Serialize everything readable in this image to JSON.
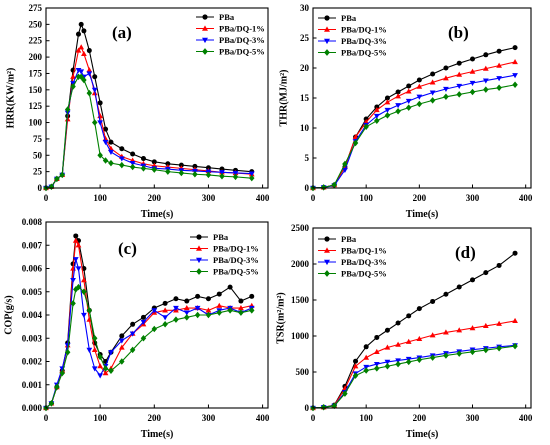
{
  "chart_data": [
    {
      "panel_label": "(a)",
      "type": "line",
      "xlabel": "Time(s)",
      "ylabel": "HRR(KW/m²)",
      "xlim": [
        0,
        410
      ],
      "ylim": [
        0,
        275
      ],
      "xticks": [
        0,
        100,
        200,
        300,
        400
      ],
      "xtick_labels": [
        "0",
        "100",
        "200",
        "300",
        "400"
      ],
      "yticks": [
        0,
        25,
        50,
        75,
        100,
        125,
        150,
        175,
        200,
        225,
        250,
        275
      ],
      "ytick_labels": [
        "0",
        "25",
        "50",
        "75",
        "100",
        "125",
        "150",
        "175",
        "200",
        "225",
        "250",
        "275"
      ],
      "legend": "top-right",
      "x": [
        0,
        10,
        20,
        30,
        40,
        50,
        60,
        65,
        70,
        80,
        90,
        100,
        110,
        120,
        140,
        160,
        180,
        200,
        225,
        250,
        275,
        300,
        325,
        350,
        380
      ],
      "series": [
        {
          "name": "PBa",
          "color": "#000000",
          "marker": "circle",
          "values": [
            0,
            2,
            14,
            20,
            110,
            180,
            235,
            250,
            240,
            210,
            170,
            130,
            90,
            70,
            60,
            52,
            45,
            40,
            37,
            35,
            33,
            31,
            29,
            27,
            25
          ]
        },
        {
          "name": "PBa/DQ-1%",
          "color": "#ff0000",
          "marker": "triangle-up",
          "values": [
            0,
            2,
            14,
            20,
            105,
            170,
            210,
            215,
            205,
            180,
            145,
            110,
            75,
            60,
            48,
            42,
            37,
            34,
            32,
            30,
            28,
            26,
            24,
            23,
            21
          ]
        },
        {
          "name": "PBa/DQ-3%",
          "color": "#0000ff",
          "marker": "triangle-down",
          "values": [
            0,
            2,
            14,
            20,
            115,
            160,
            180,
            178,
            170,
            175,
            150,
            100,
            70,
            55,
            45,
            38,
            34,
            30,
            29,
            27,
            26,
            25,
            24,
            23,
            22
          ]
        },
        {
          "name": "PBa/DQ-5%",
          "color": "#008000",
          "marker": "diamond",
          "values": [
            0,
            2,
            14,
            20,
            120,
            155,
            170,
            170,
            165,
            145,
            100,
            50,
            42,
            38,
            35,
            32,
            30,
            28,
            25,
            23,
            21,
            20,
            18,
            17,
            15
          ]
        }
      ]
    },
    {
      "panel_label": "(b)",
      "type": "line",
      "xlabel": "Time(s)",
      "ylabel": "THR(MJ/m²)",
      "xlim": [
        0,
        410
      ],
      "ylim": [
        0,
        30
      ],
      "xticks": [
        0,
        100,
        200,
        300,
        400
      ],
      "xtick_labels": [
        "0",
        "100",
        "200",
        "300",
        "400"
      ],
      "yticks": [
        0,
        5,
        10,
        15,
        20,
        25,
        30
      ],
      "ytick_labels": [
        "0",
        "5",
        "10",
        "15",
        "20",
        "25",
        "30"
      ],
      "legend": "top-left",
      "x": [
        0,
        20,
        40,
        60,
        80,
        100,
        120,
        140,
        160,
        180,
        200,
        225,
        250,
        275,
        300,
        325,
        350,
        380
      ],
      "series": [
        {
          "name": "PBa",
          "color": "#000000",
          "marker": "circle",
          "values": [
            0,
            0.1,
            0.5,
            3.5,
            8.5,
            11.5,
            13.5,
            15,
            16,
            17,
            18,
            19,
            20,
            20.8,
            21.5,
            22.2,
            22.8,
            23.4
          ]
        },
        {
          "name": "PBa/DQ-1%",
          "color": "#ff0000",
          "marker": "triangle-up",
          "values": [
            0,
            0.1,
            0.5,
            3.5,
            8.5,
            11,
            13,
            14.3,
            15.3,
            16.1,
            16.9,
            17.6,
            18.3,
            18.9,
            19.4,
            19.9,
            20.4,
            21
          ]
        },
        {
          "name": "PBa/DQ-3%",
          "color": "#0000ff",
          "marker": "triangle-down",
          "values": [
            0,
            0.1,
            0.4,
            3,
            7.8,
            10.5,
            12,
            13,
            13.8,
            14.5,
            15.2,
            15.9,
            16.5,
            17,
            17.5,
            17.9,
            18.3,
            18.8
          ]
        },
        {
          "name": "PBa/DQ-5%",
          "color": "#008000",
          "marker": "diamond",
          "values": [
            0,
            0.1,
            0.5,
            4,
            7.5,
            10.2,
            11.2,
            12.1,
            12.8,
            13.4,
            14,
            14.6,
            15.2,
            15.6,
            16,
            16.4,
            16.7,
            17.2
          ]
        }
      ]
    },
    {
      "panel_label": "(c)",
      "type": "line",
      "xlabel": "Time(s)",
      "ylabel": "COP(g/s)",
      "xlim": [
        0,
        410
      ],
      "ylim": [
        0,
        0.008
      ],
      "xticks": [
        0,
        100,
        200,
        300,
        400
      ],
      "xtick_labels": [
        "0",
        "100",
        "200",
        "300",
        "400"
      ],
      "yticks": [
        0,
        0.001,
        0.002,
        0.003,
        0.004,
        0.005,
        0.006,
        0.007,
        0.008
      ],
      "ytick_labels": [
        "0.000",
        "0.001",
        "0.002",
        "0.003",
        "0.004",
        "0.005",
        "0.006",
        "0.007",
        "0.008"
      ],
      "legend": "top-right",
      "x": [
        0,
        10,
        20,
        30,
        40,
        50,
        55,
        60,
        70,
        80,
        90,
        100,
        110,
        120,
        140,
        160,
        180,
        200,
        220,
        240,
        260,
        280,
        300,
        320,
        340,
        360,
        380
      ],
      "series": [
        {
          "name": "PBa",
          "color": "#000000",
          "marker": "circle",
          "values": [
            0,
            0.0002,
            0.0009,
            0.0016,
            0.0028,
            0.0062,
            0.0074,
            0.0072,
            0.006,
            0.0042,
            0.0028,
            0.0023,
            0.002,
            0.0024,
            0.0031,
            0.0036,
            0.0039,
            0.0043,
            0.0045,
            0.0047,
            0.0046,
            0.0048,
            0.0047,
            0.0049,
            0.0052,
            0.0046,
            0.0048
          ]
        },
        {
          "name": "PBa/DQ-1%",
          "color": "#ff0000",
          "marker": "triangle-up",
          "values": [
            0,
            0.0002,
            0.0009,
            0.0016,
            0.0027,
            0.006,
            0.0072,
            0.007,
            0.0055,
            0.0038,
            0.0025,
            0.0018,
            0.0015,
            0.0017,
            0.0026,
            0.0032,
            0.0036,
            0.0041,
            0.0042,
            0.0042,
            0.0043,
            0.0043,
            0.0042,
            0.0044,
            0.0043,
            0.0043,
            0.0044
          ]
        },
        {
          "name": "PBa/DQ-3%",
          "color": "#0000ff",
          "marker": "triangle-down",
          "values": [
            0,
            0.0002,
            0.001,
            0.0017,
            0.0027,
            0.0055,
            0.0064,
            0.006,
            0.004,
            0.0025,
            0.0017,
            0.0014,
            0.0018,
            0.0024,
            0.0029,
            0.0032,
            0.0037,
            0.0042,
            0.0039,
            0.0043,
            0.0041,
            0.0043,
            0.004,
            0.0042,
            0.0043,
            0.0041,
            0.0043
          ]
        },
        {
          "name": "PBa/DQ-5%",
          "color": "#008000",
          "marker": "diamond",
          "values": [
            0,
            0.0002,
            0.0009,
            0.0015,
            0.0024,
            0.0045,
            0.0051,
            0.0052,
            0.005,
            0.0042,
            0.003,
            0.0022,
            0.0017,
            0.0016,
            0.002,
            0.0025,
            0.003,
            0.0034,
            0.0036,
            0.0038,
            0.0039,
            0.004,
            0.004,
            0.0041,
            0.0042,
            0.0041,
            0.0042
          ]
        }
      ]
    },
    {
      "panel_label": "(d)",
      "type": "line",
      "xlabel": "Time(s)",
      "ylabel": "TSR(m²/m²)",
      "xlim": [
        0,
        410
      ],
      "ylim": [
        0,
        2500
      ],
      "xticks": [
        0,
        100,
        200,
        300,
        400
      ],
      "xtick_labels": [
        "0",
        "100",
        "200",
        "300",
        "400"
      ],
      "yticks": [
        0,
        500,
        1000,
        1500,
        2000,
        2500
      ],
      "ytick_labels": [
        "0",
        "500",
        "1000",
        "1500",
        "2000",
        "2500"
      ],
      "legend": "top-left",
      "x": [
        0,
        20,
        40,
        60,
        80,
        100,
        120,
        140,
        160,
        180,
        200,
        225,
        250,
        275,
        300,
        325,
        350,
        380
      ],
      "series": [
        {
          "name": "PBa",
          "color": "#000000",
          "marker": "circle",
          "values": [
            0,
            10,
            40,
            300,
            650,
            850,
            980,
            1080,
            1180,
            1280,
            1380,
            1480,
            1580,
            1680,
            1780,
            1880,
            1980,
            2150
          ]
        },
        {
          "name": "PBa/DQ-1%",
          "color": "#ff0000",
          "marker": "triangle-up",
          "values": [
            0,
            10,
            35,
            270,
            580,
            700,
            780,
            840,
            880,
            920,
            960,
            1010,
            1050,
            1080,
            1110,
            1140,
            1170,
            1210
          ]
        },
        {
          "name": "PBa/DQ-3%",
          "color": "#0000ff",
          "marker": "triangle-down",
          "values": [
            0,
            10,
            30,
            220,
            480,
            570,
            610,
            640,
            660,
            680,
            700,
            730,
            760,
            785,
            810,
            830,
            850,
            870
          ]
        },
        {
          "name": "PBa/DQ-5%",
          "color": "#008000",
          "marker": "diamond",
          "values": [
            0,
            10,
            30,
            200,
            450,
            520,
            550,
            580,
            610,
            640,
            670,
            700,
            730,
            755,
            780,
            805,
            830,
            860
          ]
        }
      ]
    }
  ]
}
